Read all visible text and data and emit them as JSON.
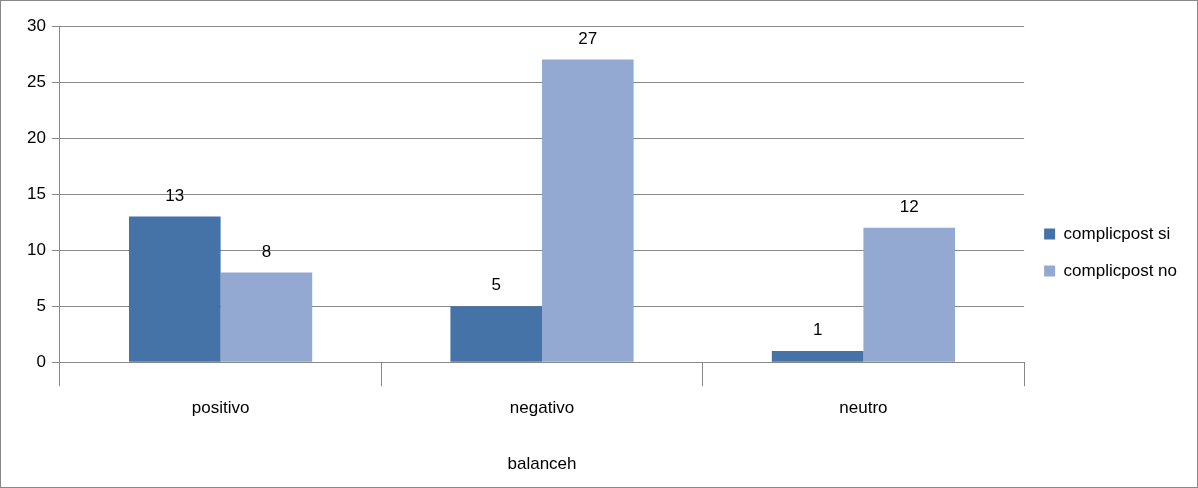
{
  "chart_data": {
    "type": "bar",
    "categories": [
      "positivo",
      "negativo",
      "neutro"
    ],
    "xlabel": "balanceh",
    "series": [
      {
        "name": "complicpost si",
        "color": "#4572a7",
        "values": [
          13,
          5,
          1
        ]
      },
      {
        "name": "complicpost no",
        "color": "#93a9d1",
        "values": [
          8,
          27,
          12
        ]
      }
    ],
    "ylim": [
      0,
      30
    ],
    "yticks": [
      0,
      5,
      10,
      15,
      20,
      25,
      30
    ],
    "grid": "y",
    "legend": "right",
    "data_labels": true
  }
}
